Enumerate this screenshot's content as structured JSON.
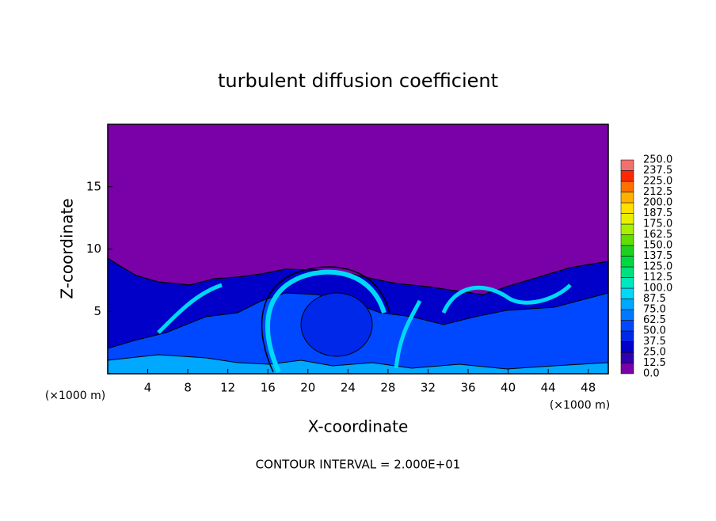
{
  "chart_data": {
    "type": "contour",
    "title": "turbulent diffusion coefficient",
    "xlabel": "X-coordinate",
    "ylabel": "Z-coordinate",
    "xunit": "(×1000 m)",
    "yunit": "(×1000 m)",
    "footer": "CONTOUR INTERVAL = 2.000E+01",
    "xlim": [
      0,
      50
    ],
    "xticks": [
      4,
      8,
      12,
      16,
      20,
      24,
      28,
      32,
      36,
      40,
      44,
      48
    ],
    "ylim": [
      0,
      20
    ],
    "yticks": [
      5,
      10,
      15
    ],
    "colorbar": {
      "ticks": [
        {
          "value": 0,
          "label": "0.0"
        },
        12.5,
        {
          "value": 25,
          "label": "25.0"
        },
        37.5,
        {
          "value": 50,
          "label": "50.0"
        },
        62.5,
        {
          "value": 75,
          "label": "75.0"
        },
        87.5,
        {
          "value": 100,
          "label": "100.0"
        },
        112.5,
        {
          "value": 125,
          "label": "125.0"
        },
        137.5,
        {
          "value": 150,
          "label": "150.0"
        },
        162.5,
        {
          "value": 175,
          "label": "175.0"
        },
        187.5,
        {
          "value": 200,
          "label": "200.0"
        },
        212.5,
        {
          "value": 225,
          "label": "225.0"
        },
        237.5,
        {
          "value": 250,
          "label": "250.0"
        }
      ],
      "colors": [
        "#7a00a8",
        "#3000b0",
        "#0000c8",
        "#0028e8",
        "#0048ff",
        "#0078ff",
        "#00a8ff",
        "#00d8f8",
        "#00e8c0",
        "#00e080",
        "#00d840",
        "#20d020",
        "#60e000",
        "#a8f000",
        "#e8f000",
        "#ffe000",
        "#ffb000",
        "#ff7000",
        "#ff2800",
        "#f07070"
      ]
    }
  }
}
